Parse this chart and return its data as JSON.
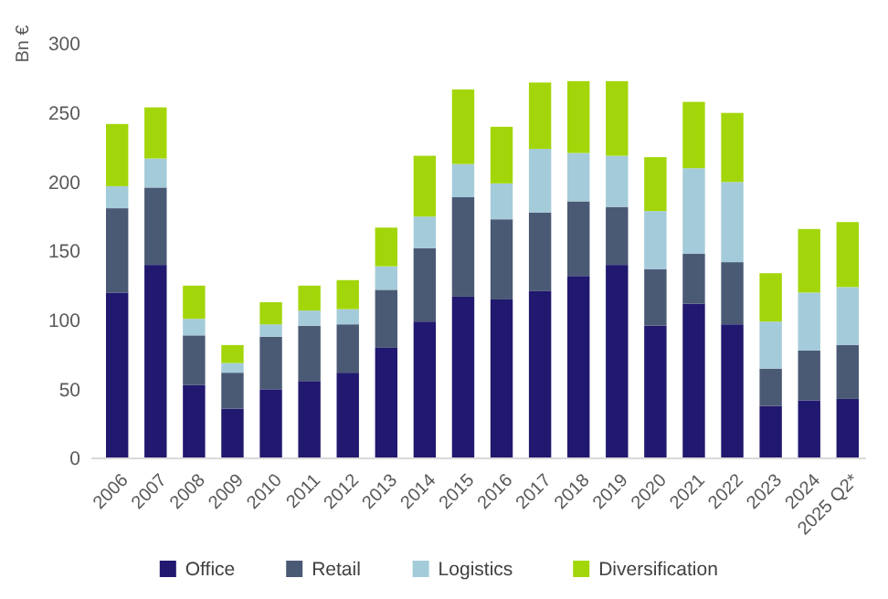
{
  "chart_data": {
    "type": "bar",
    "stacked": true,
    "ylabel": "Bn €",
    "categories": [
      "2006",
      "2007",
      "2008",
      "2009",
      "2010",
      "2011",
      "2012",
      "2013",
      "2014",
      "2015",
      "2016",
      "2017",
      "2018",
      "2019",
      "2020",
      "2021",
      "2022",
      "2023",
      "2024",
      "2025 Q2*"
    ],
    "series": [
      {
        "name": "Office",
        "color": "#21186f",
        "values": [
          120,
          140,
          53,
          36,
          50,
          56,
          62,
          80,
          99,
          117,
          115,
          121,
          132,
          140,
          96,
          112,
          97,
          38,
          42,
          43
        ]
      },
      {
        "name": "Retail",
        "color": "#4a5a75",
        "values": [
          61,
          56,
          36,
          26,
          38,
          40,
          35,
          42,
          53,
          72,
          58,
          57,
          54,
          42,
          41,
          36,
          45,
          27,
          36,
          39
        ]
      },
      {
        "name": "Logistics",
        "color": "#a4cbd9",
        "values": [
          16,
          21,
          12,
          7,
          9,
          11,
          11,
          17,
          23,
          24,
          26,
          46,
          35,
          37,
          42,
          62,
          58,
          34,
          42,
          42
        ]
      },
      {
        "name": "Diversification",
        "color": "#a3d60a",
        "values": [
          45,
          37,
          24,
          13,
          16,
          18,
          21,
          28,
          44,
          54,
          41,
          48,
          52,
          54,
          39,
          48,
          50,
          35,
          46,
          47
        ]
      }
    ],
    "ylim": [
      0,
      300
    ],
    "yticks": [
      0,
      50,
      100,
      150,
      200,
      250,
      300
    ],
    "grid": false,
    "legend": "bottom"
  }
}
